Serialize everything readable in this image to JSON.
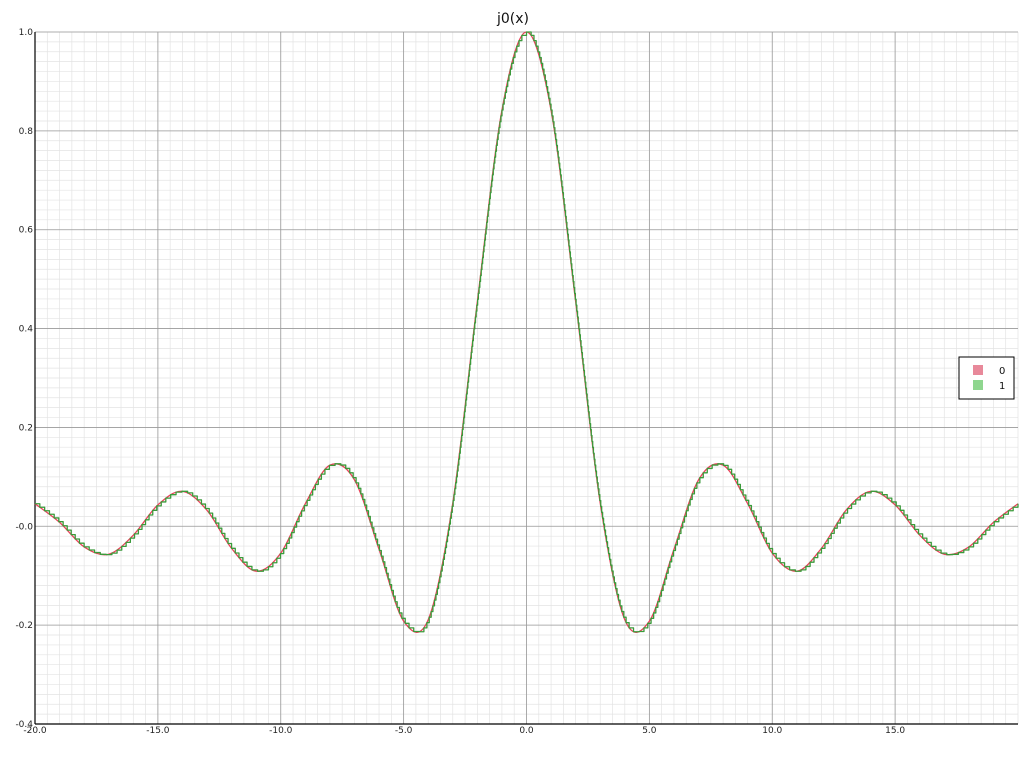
{
  "chart_data": {
    "type": "line",
    "title": "j0(x)",
    "xlabel": "",
    "ylabel": "",
    "xlim": [
      -20.0,
      20.0
    ],
    "ylim": [
      -0.4,
      1.0
    ],
    "x_ticks": [
      -20.0,
      -15.0,
      -10.0,
      -5.0,
      0.0,
      5.0,
      10.0,
      15.0
    ],
    "x_tick_labels": [
      "-20.0",
      "-15.0",
      "-10.0",
      "-5.0",
      "0.0",
      "5.0",
      "10.0",
      "15.0"
    ],
    "y_ticks": [
      -0.4,
      -0.2,
      0.0,
      0.2,
      0.4,
      0.6,
      0.8,
      1.0
    ],
    "y_tick_labels": [
      "-0.4",
      "-0.2",
      "-0.0",
      "0.2",
      "0.4",
      "0.6",
      "0.8",
      "1.0"
    ],
    "grid": true,
    "legend_position": "right",
    "function": "sin(x)/x",
    "series": [
      {
        "name": "0",
        "color": "#e8435a",
        "legend_color": "#e8899a",
        "style": "smooth",
        "x": [
          -20,
          -19,
          -18,
          -17,
          -16,
          -15,
          -14,
          -13,
          -12,
          -11,
          -10,
          -9,
          -8,
          -7,
          -6,
          -5,
          -4,
          -3,
          -2,
          -1,
          0,
          1,
          2,
          3,
          4,
          5,
          6,
          7,
          8,
          9,
          10,
          11,
          12,
          13,
          14,
          15,
          16,
          17,
          18,
          19,
          20
        ],
        "values": [
          0.0456,
          0.0079,
          -0.0417,
          -0.0565,
          -0.018,
          0.0433,
          0.0707,
          0.0323,
          -0.0447,
          -0.0909,
          -0.0544,
          0.0458,
          0.1237,
          0.0939,
          -0.0466,
          -0.1918,
          -0.1892,
          0.047,
          0.4546,
          0.8415,
          1.0,
          0.8415,
          0.4546,
          0.047,
          -0.1892,
          -0.1918,
          -0.0466,
          0.0939,
          0.1237,
          0.0458,
          -0.0544,
          -0.0909,
          -0.0447,
          0.0323,
          0.0707,
          0.0433,
          -0.018,
          -0.0565,
          -0.0417,
          0.0079,
          0.0456
        ]
      },
      {
        "name": "1",
        "color": "#3a9a3a",
        "legend_color": "#8fd68f",
        "style": "step",
        "x": [
          -20,
          -19,
          -18,
          -17,
          -16,
          -15,
          -14,
          -13,
          -12,
          -11,
          -10,
          -9,
          -8,
          -7,
          -6,
          -5,
          -4,
          -3,
          -2,
          -1,
          0,
          1,
          2,
          3,
          4,
          5,
          6,
          7,
          8,
          9,
          10,
          11,
          12,
          13,
          14,
          15,
          16,
          17,
          18,
          19,
          20
        ],
        "values": [
          0.0456,
          0.0079,
          -0.0417,
          -0.0565,
          -0.018,
          0.0433,
          0.0707,
          0.0323,
          -0.0447,
          -0.0909,
          -0.0544,
          0.0458,
          0.1237,
          0.0939,
          -0.0466,
          -0.1918,
          -0.1892,
          0.047,
          0.4546,
          0.8415,
          1.0,
          0.8415,
          0.4546,
          0.047,
          -0.1892,
          -0.1918,
          -0.0466,
          0.0939,
          0.1237,
          0.0458,
          -0.0544,
          -0.0909,
          -0.0447,
          0.0323,
          0.0707,
          0.0433,
          -0.018,
          -0.0565,
          -0.0417,
          0.0079,
          0.0456
        ]
      }
    ]
  }
}
